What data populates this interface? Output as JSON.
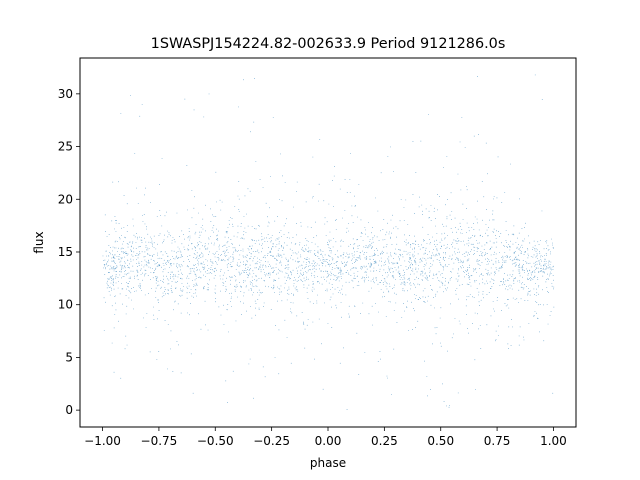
{
  "chart_data": {
    "type": "scatter",
    "title": "1SWASPJ154224.82-002633.9 Period 9121286.0s",
    "xlabel": "phase",
    "ylabel": "flux",
    "xlim": [
      -1.1,
      1.1
    ],
    "ylim": [
      -1.6,
      33.4
    ],
    "xticks": [
      -1.0,
      -0.75,
      -0.5,
      -0.25,
      0.0,
      0.25,
      0.5,
      0.75,
      1.0
    ],
    "xtick_labels": [
      "−1.00",
      "−0.75",
      "−0.50",
      "−0.25",
      "0.00",
      "0.25",
      "0.50",
      "0.75",
      "1.00"
    ],
    "yticks": [
      0,
      5,
      10,
      15,
      20,
      25,
      30
    ],
    "ytick_labels": [
      "0",
      "5",
      "10",
      "15",
      "20",
      "25",
      "30"
    ],
    "grid": false,
    "legend": "none",
    "marker_color": "#1f77b4",
    "phase_range": [
      -1.0,
      1.0
    ],
    "flux_core_range": [
      10,
      17
    ],
    "flux_scatter_range": [
      0,
      32
    ],
    "envelope": {
      "phase": [
        -1.0,
        -0.9,
        -0.8,
        -0.7,
        -0.6,
        -0.5,
        -0.4,
        -0.3,
        -0.2,
        -0.1,
        0.0,
        0.1,
        0.2,
        0.3,
        0.4,
        0.5,
        0.6,
        0.7,
        0.8,
        0.9,
        1.0
      ],
      "median_flux": [
        13.5,
        14.0,
        14.0,
        13.8,
        14.0,
        14.3,
        14.2,
        14.0,
        13.8,
        13.5,
        13.5,
        14.0,
        14.0,
        13.8,
        14.0,
        14.3,
        14.2,
        14.0,
        13.8,
        13.5,
        13.5
      ],
      "core_lower": [
        10.5,
        10.5,
        10.0,
        10.5,
        10.0,
        9.5,
        9.5,
        10.0,
        10.5,
        11.0,
        10.5,
        10.5,
        10.0,
        10.5,
        10.0,
        9.5,
        9.5,
        10.0,
        10.5,
        11.0,
        10.5
      ],
      "core_upper": [
        16.5,
        17.0,
        17.5,
        17.5,
        18.0,
        19.0,
        19.0,
        18.5,
        17.5,
        17.0,
        16.5,
        17.0,
        17.5,
        17.5,
        18.0,
        19.0,
        19.0,
        18.5,
        17.5,
        17.0,
        16.5
      ]
    }
  }
}
